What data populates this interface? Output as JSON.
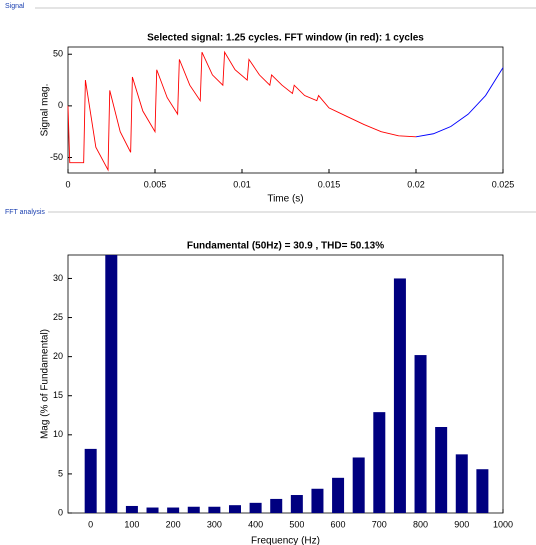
{
  "chart_data": [
    {
      "type": "line",
      "panel": "Signal",
      "title": "Selected signal: 1.25 cycles. FFT window (in red): 1 cycles",
      "xlabel": "Time (s)",
      "ylabel": "Signal mag.",
      "xlim": [
        0,
        0.025
      ],
      "xticks": [
        0,
        0.005,
        0.01,
        0.015,
        0.02,
        0.025
      ],
      "ylim": [
        -65,
        57
      ],
      "yticks": [
        -50,
        0,
        50
      ],
      "series": [
        {
          "color": "#ff0000",
          "x": [
            0,
            0.0001,
            0.0009,
            0.001,
            0.0016,
            0.0023,
            0.0024,
            0.003,
            0.0036,
            0.0037,
            0.0043,
            0.005,
            0.0051,
            0.0057,
            0.0063,
            0.0064,
            0.007,
            0.0076,
            0.0077,
            0.0083,
            0.0089,
            0.009,
            0.0096,
            0.0103,
            0.0104,
            0.011,
            0.0116,
            0.0117,
            0.0123,
            0.0129,
            0.013,
            0.0136,
            0.0143,
            0.0144,
            0.015,
            0.016,
            0.017,
            0.018,
            0.019,
            0.02
          ],
          "values": [
            0,
            -55,
            -55,
            25,
            -40,
            -62,
            15,
            -25,
            -45,
            28,
            -5,
            -25,
            35,
            8,
            -8,
            45,
            20,
            5,
            52,
            30,
            20,
            52,
            35,
            25,
            45,
            30,
            20,
            30,
            20,
            12,
            20,
            10,
            5,
            10,
            -2,
            -10,
            -18,
            -25,
            -29,
            -30
          ]
        },
        {
          "color": "#0000ff",
          "x": [
            0.02,
            0.021,
            0.022,
            0.023,
            0.024,
            0.025
          ],
          "values": [
            -30,
            -27,
            -20,
            -8,
            10,
            37
          ]
        }
      ]
    },
    {
      "type": "bar",
      "panel": "FFT analysis",
      "title": "Fundamental (50Hz) = 30.9 , THD= 50.13%",
      "xlabel": "Frequency (Hz)",
      "ylabel": "Mag (% of Fundamental)",
      "xlim": [
        -55,
        1000
      ],
      "xticks": [
        0,
        100,
        200,
        300,
        400,
        500,
        600,
        700,
        800,
        900,
        1000
      ],
      "ylim": [
        0,
        33
      ],
      "yticks": [
        0,
        5,
        10,
        15,
        20,
        25,
        30
      ],
      "color": "#000080",
      "x": [
        0,
        50,
        100,
        150,
        200,
        250,
        300,
        350,
        400,
        450,
        500,
        550,
        600,
        650,
        700,
        750,
        800,
        850,
        900,
        950
      ],
      "values": [
        8.2,
        33,
        0.9,
        0.7,
        0.7,
        0.8,
        0.8,
        1.0,
        1.3,
        1.8,
        2.3,
        3.1,
        4.5,
        7.1,
        12.9,
        30.0,
        20.2,
        11.0,
        7.5,
        5.6
      ]
    }
  ]
}
